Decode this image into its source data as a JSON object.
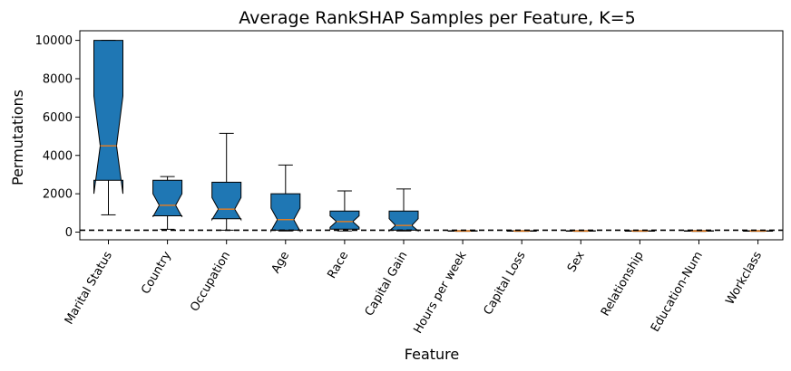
{
  "chart_data": {
    "type": "box",
    "title": "Average RankSHAP Samples per Feature, K=5",
    "xlabel": "Feature",
    "ylabel": "Permutations",
    "ylim": [
      -400,
      10500
    ],
    "yticks": [
      0,
      2000,
      4000,
      6000,
      8000,
      10000
    ],
    "reference_line": {
      "y": 100,
      "style": "dashed",
      "color": "#000000"
    },
    "notched": true,
    "box_color": "#1f77b4",
    "median_color": "#ff7f0e",
    "grid": false,
    "categories": [
      "Marital Status",
      "Country",
      "Occupation",
      "Age",
      "Race",
      "Capital Gain",
      "Hours per week",
      "Capital Loss",
      "Sex",
      "Relationship",
      "Education-Num",
      "Workclass"
    ],
    "boxes": [
      {
        "whisker_low": 900,
        "q1": 2700,
        "median": 4500,
        "q3": 10000,
        "whisker_high": 10000,
        "notch_low": 2000,
        "notch_high": 7100
      },
      {
        "whisker_low": 150,
        "q1": 850,
        "median": 1400,
        "q3": 2700,
        "whisker_high": 2900,
        "notch_low": 800,
        "notch_high": 2000
      },
      {
        "whisker_low": 100,
        "q1": 700,
        "median": 1200,
        "q3": 2600,
        "whisker_high": 5150,
        "notch_low": 650,
        "notch_high": 1800
      },
      {
        "whisker_low": 60,
        "q1": 100,
        "median": 650,
        "q3": 2000,
        "whisker_high": 3500,
        "notch_low": 60,
        "notch_high": 1250
      },
      {
        "whisker_low": 60,
        "q1": 150,
        "median": 550,
        "q3": 1100,
        "whisker_high": 2150,
        "notch_low": 250,
        "notch_high": 850
      },
      {
        "whisker_low": 60,
        "q1": 100,
        "median": 350,
        "q3": 1100,
        "whisker_high": 2250,
        "notch_low": 60,
        "notch_high": 700
      },
      {
        "whisker_low": 40,
        "q1": 50,
        "median": 60,
        "q3": 70,
        "whisker_high": 80,
        "notch_low": 55,
        "notch_high": 65
      },
      {
        "whisker_low": 40,
        "q1": 50,
        "median": 60,
        "q3": 70,
        "whisker_high": 80,
        "notch_low": 55,
        "notch_high": 65
      },
      {
        "whisker_low": 40,
        "q1": 50,
        "median": 60,
        "q3": 70,
        "whisker_high": 80,
        "notch_low": 55,
        "notch_high": 65
      },
      {
        "whisker_low": 40,
        "q1": 50,
        "median": 60,
        "q3": 70,
        "whisker_high": 80,
        "notch_low": 55,
        "notch_high": 65
      },
      {
        "whisker_low": 40,
        "q1": 50,
        "median": 60,
        "q3": 70,
        "whisker_high": 80,
        "notch_low": 55,
        "notch_high": 65
      },
      {
        "whisker_low": 40,
        "q1": 50,
        "median": 60,
        "q3": 70,
        "whisker_high": 80,
        "notch_low": 55,
        "notch_high": 65
      }
    ]
  }
}
